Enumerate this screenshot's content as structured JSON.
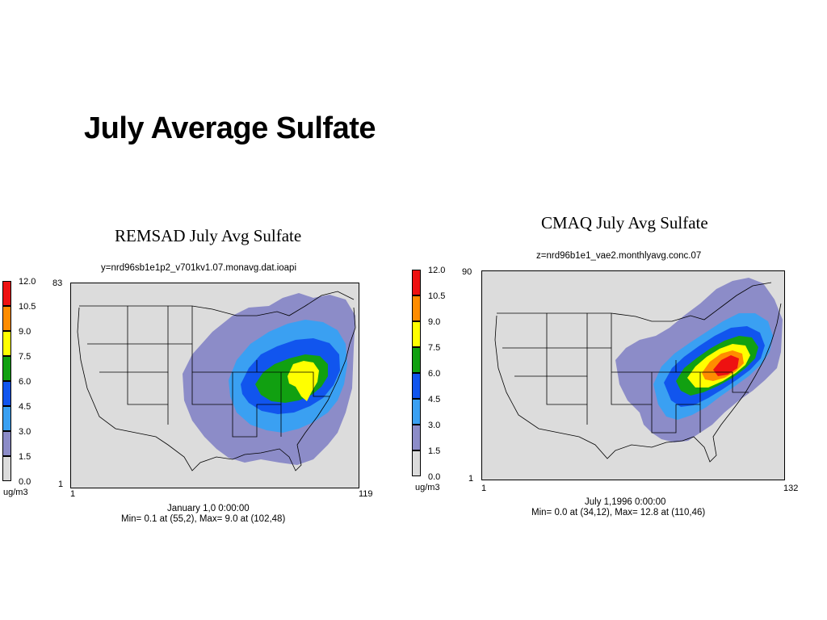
{
  "slide": {
    "title": "July Average Sulfate"
  },
  "colors": {
    "c12": "#ee1111",
    "c105": "#ff8c00",
    "c9": "#ffff00",
    "c75": "#11a011",
    "c6": "#1155ee",
    "c45": "#3aa0f2",
    "c3": "#8c8cc8",
    "c15": "#dcdcdc",
    "land": "#dcdcdc"
  },
  "legend_values": [
    "12.0",
    "10.5",
    "9.0",
    "7.5",
    "6.0",
    "4.5",
    "3.0",
    "1.5",
    "0.0"
  ],
  "left_panel": {
    "title": "REMSAD July Avg Sulfate",
    "file": "y=nrd96sb1e1p2_v701kv1.07.monavg.dat.ioapi",
    "y_max": "83",
    "y_min": "1",
    "x_min": "1",
    "x_max": "119",
    "units": "ug/m3",
    "footer_line1": "January 1,0 0:00:00",
    "footer_line2": "Min=  0.1 at (55,2), Max=  9.0 at (102,48)"
  },
  "right_panel": {
    "title": "CMAQ July Avg Sulfate",
    "file": "z=nrd96b1e1_vae2.monthlyavg.conc.07",
    "y_max": "90",
    "y_min": "1",
    "x_min": "1",
    "x_max": "132",
    "units": "ug/m3",
    "footer_line1": "July 1,1996 0:00:00",
    "footer_line2": "Min=  0.0 at (34,12), Max= 12.8 at (110,46)"
  }
}
